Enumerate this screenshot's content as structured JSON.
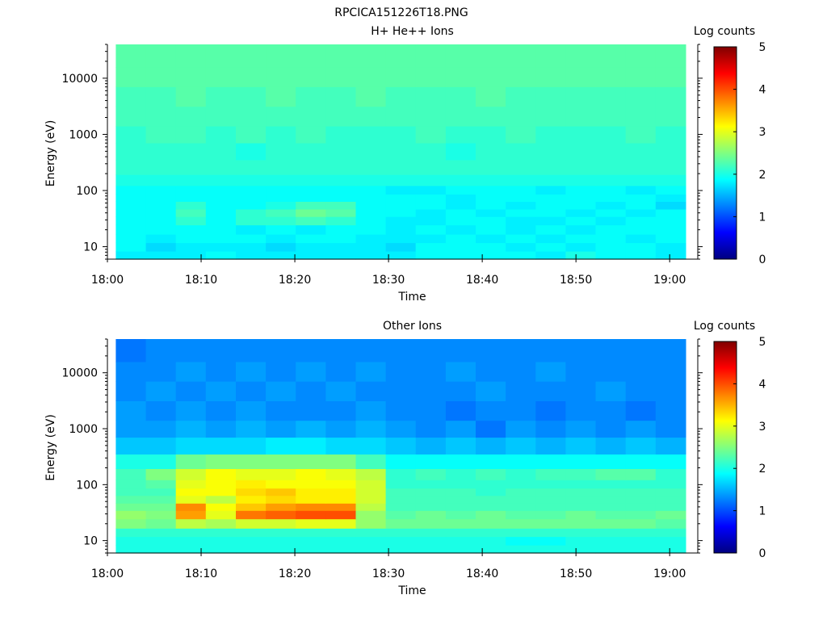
{
  "figure": {
    "title": "RPCICA151226T18.PNG"
  },
  "colormap": {
    "name": "jet",
    "stops": [
      "#000080",
      "#0000ff",
      "#0080ff",
      "#00ffff",
      "#80ff80",
      "#ffff00",
      "#ff8000",
      "#ff0000",
      "#800000"
    ]
  },
  "chart_data": [
    {
      "type": "heatmap",
      "title": "H+ He++ Ions",
      "xlabel": "Time",
      "ylabel": "Energy (eV)",
      "colorbar_label": "Log counts",
      "colorbar_ticks": [
        "0",
        "1",
        "2",
        "3",
        "4",
        "5"
      ],
      "clim": [
        0,
        5
      ],
      "x_tick_labels": [
        "18:00",
        "18:10",
        "18:20",
        "18:30",
        "18:40",
        "18:50",
        "19:00"
      ],
      "y_tick_labels": [
        "10",
        "100",
        "1000",
        "10000"
      ],
      "xlim": [
        "18:00",
        "19:03"
      ],
      "ylim": [
        6,
        40000
      ],
      "yscale": "log",
      "time_bins": [
        "18:02.5",
        "18:05.7",
        "18:08.9",
        "18:12.1",
        "18:15.3",
        "18:18.5",
        "18:21.7",
        "18:24.9",
        "18:28.1",
        "18:31.3",
        "18:34.5",
        "18:37.7",
        "18:40.9",
        "18:44.1",
        "18:47.3",
        "18:50.5",
        "18:53.7",
        "18:56.9",
        "19:00.1"
      ],
      "energy_bands_eV": [
        7,
        10,
        14,
        20,
        30,
        40,
        55,
        75,
        100,
        150,
        250,
        500,
        1000,
        2000,
        5000,
        10000,
        25000
      ],
      "values": [
        [
          1.8,
          1.8,
          1.8,
          1.9,
          1.8,
          1.8,
          1.8,
          1.8,
          1.8,
          1.8,
          1.9,
          1.9,
          1.9,
          1.9,
          1.8,
          2.0,
          1.9,
          1.9,
          1.8
        ],
        [
          1.9,
          1.7,
          1.8,
          1.8,
          1.8,
          1.7,
          1.8,
          1.8,
          1.8,
          1.7,
          1.9,
          1.9,
          1.9,
          1.8,
          1.9,
          1.8,
          1.9,
          1.9,
          1.8
        ],
        [
          1.9,
          1.8,
          1.9,
          1.9,
          1.9,
          1.8,
          1.9,
          1.9,
          1.8,
          1.8,
          1.8,
          1.9,
          1.8,
          1.9,
          1.8,
          1.9,
          1.9,
          1.8,
          1.9
        ],
        [
          1.9,
          1.9,
          1.9,
          1.9,
          1.8,
          1.9,
          1.8,
          1.9,
          1.9,
          1.8,
          1.9,
          1.8,
          1.9,
          1.8,
          1.9,
          1.8,
          1.9,
          1.9,
          1.9
        ],
        [
          1.9,
          1.9,
          2.1,
          1.9,
          2.1,
          2.1,
          2.2,
          2.1,
          1.9,
          1.8,
          1.8,
          1.9,
          1.9,
          1.8,
          1.8,
          1.9,
          1.8,
          1.9,
          1.9
        ],
        [
          1.9,
          1.9,
          2.2,
          1.9,
          2.1,
          2.2,
          2.4,
          2.3,
          1.9,
          1.9,
          1.8,
          1.9,
          1.8,
          1.9,
          1.9,
          1.8,
          1.9,
          1.8,
          1.9
        ],
        [
          1.9,
          1.9,
          2.1,
          1.9,
          1.9,
          2.0,
          2.2,
          2.2,
          1.9,
          1.9,
          1.9,
          1.8,
          1.9,
          1.8,
          1.9,
          1.9,
          1.8,
          1.9,
          1.7
        ],
        [
          1.9,
          1.9,
          1.9,
          1.9,
          1.9,
          1.9,
          1.9,
          1.9,
          1.9,
          1.9,
          1.9,
          1.8,
          1.9,
          1.9,
          1.9,
          1.9,
          1.9,
          1.9,
          1.8
        ],
        [
          1.9,
          1.9,
          1.9,
          1.9,
          1.9,
          1.9,
          1.9,
          1.9,
          1.9,
          1.8,
          1.8,
          1.9,
          1.9,
          1.9,
          1.8,
          1.9,
          1.9,
          1.8,
          1.9
        ],
        [
          2.0,
          2.0,
          2.0,
          2.0,
          2.0,
          2.0,
          2.0,
          2.0,
          2.0,
          2.0,
          2.0,
          2.0,
          2.0,
          2.0,
          2.0,
          2.0,
          2.0,
          2.0,
          2.0
        ],
        [
          2.1,
          2.1,
          2.1,
          2.1,
          2.1,
          2.1,
          2.1,
          2.1,
          2.1,
          2.1,
          2.1,
          2.1,
          2.1,
          2.1,
          2.1,
          2.1,
          2.1,
          2.1,
          2.1
        ],
        [
          2.1,
          2.1,
          2.1,
          2.1,
          2.0,
          2.1,
          2.1,
          2.1,
          2.1,
          2.1,
          2.1,
          2.0,
          2.1,
          2.1,
          2.1,
          2.1,
          2.1,
          2.1,
          2.1
        ],
        [
          2.1,
          2.2,
          2.2,
          2.1,
          2.2,
          2.1,
          2.2,
          2.1,
          2.1,
          2.1,
          2.2,
          2.1,
          2.1,
          2.2,
          2.1,
          2.1,
          2.1,
          2.2,
          2.1
        ],
        [
          2.2,
          2.2,
          2.2,
          2.2,
          2.2,
          2.2,
          2.2,
          2.2,
          2.2,
          2.2,
          2.2,
          2.2,
          2.2,
          2.2,
          2.2,
          2.2,
          2.2,
          2.2,
          2.2
        ],
        [
          2.2,
          2.2,
          2.3,
          2.2,
          2.2,
          2.3,
          2.2,
          2.2,
          2.3,
          2.2,
          2.2,
          2.2,
          2.3,
          2.2,
          2.2,
          2.2,
          2.2,
          2.2,
          2.2
        ],
        [
          2.3,
          2.3,
          2.3,
          2.3,
          2.3,
          2.3,
          2.3,
          2.3,
          2.3,
          2.3,
          2.3,
          2.3,
          2.3,
          2.3,
          2.3,
          2.3,
          2.3,
          2.3,
          2.3
        ],
        [
          2.3,
          2.3,
          2.3,
          2.3,
          2.3,
          2.3,
          2.3,
          2.3,
          2.3,
          2.3,
          2.3,
          2.3,
          2.3,
          2.3,
          2.3,
          2.3,
          2.3,
          2.3,
          2.3
        ]
      ]
    },
    {
      "type": "heatmap",
      "title": "Other Ions",
      "xlabel": "Time",
      "ylabel": "Energy (eV)",
      "colorbar_label": "Log counts",
      "colorbar_ticks": [
        "0",
        "1",
        "2",
        "3",
        "4",
        "5"
      ],
      "clim": [
        0,
        5
      ],
      "x_tick_labels": [
        "18:00",
        "18:10",
        "18:20",
        "18:30",
        "18:40",
        "18:50",
        "19:00"
      ],
      "y_tick_labels": [
        "10",
        "100",
        "1000",
        "10000"
      ],
      "xlim": [
        "18:00",
        "19:03"
      ],
      "ylim": [
        6,
        40000
      ],
      "yscale": "log",
      "time_bins": [
        "18:02.5",
        "18:05.7",
        "18:08.9",
        "18:12.1",
        "18:15.3",
        "18:18.5",
        "18:21.7",
        "18:24.9",
        "18:28.1",
        "18:31.3",
        "18:34.5",
        "18:37.7",
        "18:40.9",
        "18:44.1",
        "18:47.3",
        "18:50.5",
        "18:53.7",
        "18:56.9",
        "19:00.1"
      ],
      "energy_bands_eV": [
        7,
        10,
        14,
        20,
        30,
        40,
        55,
        75,
        100,
        150,
        250,
        500,
        1000,
        2000,
        5000,
        10000,
        25000
      ],
      "values": [
        [
          2.0,
          2.0,
          2.0,
          2.0,
          2.0,
          2.0,
          2.0,
          2.0,
          2.0,
          2.0,
          2.0,
          2.0,
          2.0,
          2.0,
          2.0,
          2.0,
          2.0,
          2.0,
          2.0
        ],
        [
          2.0,
          2.0,
          2.0,
          2.0,
          2.0,
          2.0,
          2.0,
          2.0,
          2.0,
          2.0,
          2.0,
          2.0,
          2.0,
          1.9,
          1.9,
          2.0,
          2.0,
          2.0,
          2.0
        ],
        [
          2.1,
          2.1,
          2.1,
          2.1,
          2.1,
          2.1,
          2.1,
          2.1,
          2.1,
          2.1,
          2.1,
          2.1,
          2.1,
          2.1,
          2.1,
          2.1,
          2.1,
          2.1,
          2.1
        ],
        [
          2.5,
          2.4,
          2.8,
          2.7,
          2.9,
          2.9,
          3.0,
          3.0,
          2.6,
          2.4,
          2.4,
          2.4,
          2.4,
          2.4,
          2.4,
          2.4,
          2.4,
          2.4,
          2.3
        ],
        [
          2.6,
          2.5,
          3.6,
          3.0,
          3.8,
          3.9,
          4.0,
          4.0,
          2.6,
          2.3,
          2.4,
          2.3,
          2.4,
          2.3,
          2.3,
          2.4,
          2.3,
          2.3,
          2.4
        ],
        [
          2.4,
          2.4,
          3.7,
          3.1,
          3.4,
          3.6,
          3.7,
          3.7,
          2.8,
          2.2,
          2.2,
          2.2,
          2.2,
          2.2,
          2.2,
          2.2,
          2.2,
          2.2,
          2.2
        ],
        [
          2.3,
          2.3,
          3.0,
          2.8,
          3.2,
          3.3,
          3.2,
          3.2,
          2.9,
          2.2,
          2.2,
          2.2,
          2.2,
          2.2,
          2.2,
          2.2,
          2.2,
          2.2,
          2.2
        ],
        [
          2.2,
          2.2,
          3.1,
          3.1,
          3.3,
          3.4,
          3.2,
          3.2,
          2.9,
          2.2,
          2.2,
          2.2,
          2.1,
          2.2,
          2.2,
          2.2,
          2.2,
          2.2,
          2.2
        ],
        [
          2.2,
          2.3,
          3.0,
          3.1,
          3.2,
          3.1,
          3.1,
          3.1,
          2.9,
          2.1,
          2.1,
          2.1,
          2.1,
          2.1,
          2.1,
          2.1,
          2.1,
          2.1,
          2.1
        ],
        [
          2.2,
          2.5,
          2.9,
          3.1,
          3.0,
          3.0,
          3.1,
          3.0,
          2.8,
          2.1,
          2.2,
          2.1,
          2.2,
          2.1,
          2.2,
          2.2,
          2.3,
          2.3,
          2.1
        ],
        [
          2.0,
          2.0,
          2.4,
          2.5,
          2.5,
          2.5,
          2.5,
          2.5,
          2.2,
          1.9,
          1.9,
          1.9,
          1.9,
          1.9,
          1.9,
          1.9,
          1.9,
          1.9,
          1.9
        ],
        [
          1.6,
          1.6,
          1.7,
          1.7,
          1.7,
          1.8,
          1.8,
          1.7,
          1.7,
          1.6,
          1.5,
          1.6,
          1.5,
          1.6,
          1.5,
          1.6,
          1.5,
          1.6,
          1.5
        ],
        [
          1.4,
          1.4,
          1.5,
          1.4,
          1.5,
          1.4,
          1.5,
          1.4,
          1.5,
          1.4,
          1.3,
          1.4,
          1.2,
          1.4,
          1.3,
          1.4,
          1.3,
          1.4,
          1.3
        ],
        [
          1.4,
          1.3,
          1.4,
          1.3,
          1.4,
          1.3,
          1.3,
          1.3,
          1.4,
          1.3,
          1.3,
          1.2,
          1.3,
          1.3,
          1.2,
          1.3,
          1.3,
          1.2,
          1.3
        ],
        [
          1.3,
          1.4,
          1.3,
          1.4,
          1.3,
          1.4,
          1.3,
          1.4,
          1.3,
          1.3,
          1.3,
          1.3,
          1.4,
          1.3,
          1.3,
          1.3,
          1.4,
          1.3,
          1.3
        ],
        [
          1.3,
          1.3,
          1.4,
          1.3,
          1.4,
          1.3,
          1.4,
          1.3,
          1.4,
          1.3,
          1.3,
          1.4,
          1.3,
          1.3,
          1.4,
          1.3,
          1.3,
          1.3,
          1.3
        ],
        [
          1.2,
          1.3,
          1.3,
          1.3,
          1.3,
          1.3,
          1.3,
          1.3,
          1.3,
          1.3,
          1.3,
          1.3,
          1.3,
          1.3,
          1.3,
          1.3,
          1.3,
          1.3,
          1.3
        ]
      ]
    }
  ]
}
